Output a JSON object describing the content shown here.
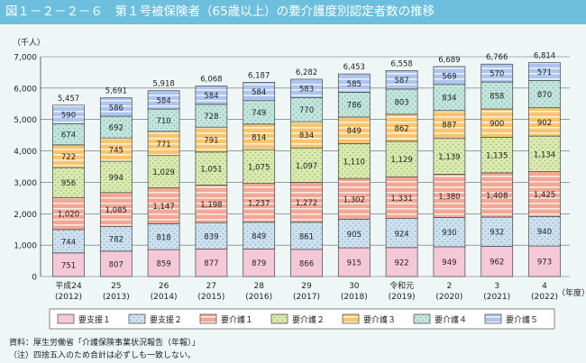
{
  "title": "図１－２－２－６　第１号被保険者（65歳以上）の要介護度別認定者数の推移",
  "chart_data": {
    "type": "bar",
    "stacked": true,
    "title": "図１－２－２－６　第１号被保険者（65歳以上）の要介護度別認定者数の推移",
    "ylabel": "（千人）",
    "xlabel": "（年度）",
    "ylim": [
      0,
      7000
    ],
    "yticks": [
      "0",
      "1,000",
      "2,000",
      "3,000",
      "4,000",
      "5,000",
      "6,000",
      "7,000"
    ],
    "categories": [
      "平成24",
      "25",
      "26",
      "27",
      "28",
      "29",
      "30",
      "令和元",
      "2",
      "3",
      "4"
    ],
    "categories_sub": [
      "(2012)",
      "(2013)",
      "(2014)",
      "(2015)",
      "(2016)",
      "(2017)",
      "(2018)",
      "(2019)",
      "(2020)",
      "(2021)",
      "(2022)"
    ],
    "series": [
      {
        "name": "要支援１",
        "color": "#f5c8d8",
        "pattern": "solid",
        "values": [
          751,
          807,
          859,
          877,
          879,
          866,
          915,
          922,
          949,
          962,
          973
        ]
      },
      {
        "name": "要支援２",
        "color": "#cfe0f3",
        "pattern": "dots",
        "values": [
          744,
          782,
          818,
          839,
          849,
          861,
          905,
          924,
          930,
          932,
          940
        ]
      },
      {
        "name": "要介護１",
        "color": "#f3a795",
        "pattern": "stripes",
        "values": [
          1020,
          1085,
          1147,
          1198,
          1237,
          1272,
          1302,
          1331,
          1380,
          1408,
          1425
        ]
      },
      {
        "name": "要介護２",
        "color": "#dde9ab",
        "pattern": "dots",
        "values": [
          956,
          994,
          1029,
          1051,
          1075,
          1097,
          1110,
          1129,
          1139,
          1135,
          1134
        ]
      },
      {
        "name": "要介護３",
        "color": "#f7c56e",
        "pattern": "stripes",
        "values": [
          722,
          745,
          771,
          791,
          814,
          834,
          849,
          862,
          887,
          900,
          902
        ]
      },
      {
        "name": "要介護４",
        "color": "#c3e5de",
        "pattern": "dots",
        "values": [
          674,
          692,
          710,
          728,
          749,
          770,
          786,
          803,
          834,
          858,
          870
        ]
      },
      {
        "name": "要介護５",
        "color": "#adc5ee",
        "pattern": "stripes",
        "values": [
          590,
          586,
          584,
          584,
          584,
          583,
          585,
          587,
          569,
          570,
          571
        ]
      }
    ],
    "totals": [
      5457,
      5691,
      5918,
      6068,
      6187,
      6282,
      6453,
      6558,
      6689,
      6766,
      6814
    ],
    "legend": "bottom",
    "grid": true
  },
  "notes": [
    "資料：厚生労働省「介護保険事業状況報告（年報）」",
    "（注）四捨五入のため合計は必ずしも一致しない。"
  ]
}
